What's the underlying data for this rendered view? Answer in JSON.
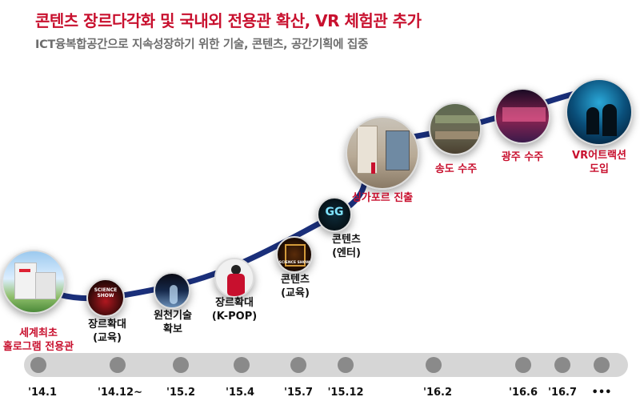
{
  "title": "콘텐츠 장르다각화 및 국내외 전용관 확산, VR 체험관 추가",
  "subtitle": "ICT융복합공간으로 지속성장하기 위한 기술, 콘텐츠, 공간기획에 집중",
  "milestones": [
    {
      "line1": "세계최초",
      "line2": "홀로그램 전용관",
      "date": "'14.1"
    },
    {
      "line1": "장르확대",
      "line2": "(교육)",
      "date": "'14.12~"
    },
    {
      "line1": "원천기술",
      "line2": "확보",
      "date": "'15.2"
    },
    {
      "line1": "장르확대",
      "line2": "(K-POP)",
      "date": "'15.4"
    },
    {
      "line1": "콘텐츠",
      "line2": "(교육)",
      "date": "'15.7"
    },
    {
      "line1": "콘텐츠",
      "line2": "(엔터)",
      "date": "'15.12"
    },
    {
      "line1": "싱가포르 진출",
      "line2": "",
      "date": "'16.2"
    },
    {
      "line1": "송도 수주",
      "line2": "",
      "date": "'16.6"
    },
    {
      "line1": "광주 수주",
      "line2": "",
      "date": "'16.7"
    },
    {
      "line1": "VR어트랙션",
      "line2": "도입",
      "date": "•••"
    }
  ],
  "thumb_texts": {
    "science_show_a": "SCIENCE SHOW",
    "science_show_b": "SCIENCE SHOW",
    "gg_logo": "GG"
  },
  "colors": {
    "accent": "#c8102e",
    "curve": "#1a2f7a",
    "timeline": "#d6d6d6",
    "dot": "#8a8a8a"
  }
}
